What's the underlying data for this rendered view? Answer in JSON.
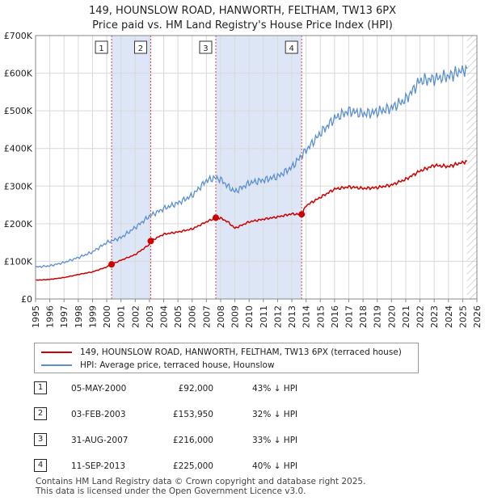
{
  "title_line1": "149, HOUNSLOW ROAD, HANWORTH, FELTHAM, TW13 6PX",
  "title_line2": "Price paid vs. HM Land Registry's House Price Index (HPI)",
  "colors": {
    "property": "#cc0000",
    "hpi": "#5b8fcf",
    "shade": "#dde6f7",
    "marker_line": "#cc0000"
  },
  "chart_data": {
    "type": "line",
    "title": "149, HOUNSLOW ROAD, HANWORTH, FELTHAM, TW13 6PX — Price paid vs. HM Land Registry's House Price Index (HPI)",
    "xlim": [
      1995,
      2026
    ],
    "ylim": [
      0,
      700000
    ],
    "yticks": [
      0,
      100000,
      200000,
      300000,
      400000,
      500000,
      600000,
      700000
    ],
    "ytick_labels": [
      "£0",
      "£100K",
      "£200K",
      "£300K",
      "£400K",
      "£500K",
      "£600K",
      "£700K"
    ],
    "xticks": [
      "1995",
      "1996",
      "1997",
      "1998",
      "1999",
      "2000",
      "2001",
      "2002",
      "2003",
      "2004",
      "2005",
      "2006",
      "2007",
      "2008",
      "2009",
      "2010",
      "2011",
      "2012",
      "2013",
      "2014",
      "2015",
      "2016",
      "2017",
      "2018",
      "2019",
      "2020",
      "2021",
      "2022",
      "2023",
      "2024",
      "2025",
      "2026"
    ],
    "grid": true,
    "shaded_ranges": [
      [
        2000.34,
        2003.09
      ],
      [
        2007.66,
        2013.69
      ]
    ],
    "data_end": 2025.3,
    "series": [
      {
        "name": "149, HOUNSLOW ROAD, HANWORTH, FELTHAM, TW13 6PX (terraced house)",
        "x": [
          1995,
          1996,
          1997,
          1998,
          1999,
          2000,
          2000.34,
          2001,
          2002,
          2003,
          2003.09,
          2004,
          2005,
          2006,
          2007,
          2007.66,
          2008,
          2008.5,
          2009,
          2010,
          2011,
          2012,
          2013,
          2013.69,
          2014,
          2015,
          2016,
          2017,
          2018,
          2019,
          2020,
          2021,
          2022,
          2023,
          2024,
          2025.3
        ],
        "y": [
          50000,
          52000,
          57000,
          65000,
          72000,
          85000,
          92000,
          103000,
          118000,
          145000,
          153950,
          172000,
          178000,
          186000,
          205000,
          216000,
          215000,
          205000,
          188000,
          205000,
          212000,
          218000,
          226000,
          225000,
          248000,
          270000,
          292000,
          298000,
          294000,
          296000,
          303000,
          318000,
          340000,
          355000,
          352000,
          366000
        ]
      },
      {
        "name": "HPI: Average price, terraced house, Hounslow",
        "x": [
          1995,
          1996,
          1997,
          1998,
          1999,
          2000,
          2001,
          2002,
          2003,
          2004,
          2005,
          2006,
          2007,
          2007.66,
          2008,
          2008.5,
          2009,
          2010,
          2011,
          2012,
          2013,
          2014,
          2015,
          2016,
          2017,
          2018,
          2019,
          2020,
          2021,
          2022,
          2023,
          2024,
          2025.3
        ],
        "y": [
          85000,
          88000,
          97000,
          110000,
          125000,
          150000,
          163000,
          190000,
          220000,
          240000,
          255000,
          275000,
          315000,
          322000,
          318000,
          300000,
          285000,
          308000,
          316000,
          325000,
          350000,
          395000,
          440000,
          480000,
          500000,
          492000,
          497000,
          508000,
          530000,
          580000,
          585000,
          592000,
          612000
        ]
      }
    ],
    "sales": [
      {
        "id": "1",
        "x": 2000.34,
        "y": 92000,
        "date": "05-MAY-2000",
        "price": "£92,000",
        "hpi": "43% ↓ HPI"
      },
      {
        "id": "2",
        "x": 2003.09,
        "y": 153950,
        "date": "03-FEB-2003",
        "price": "£153,950",
        "hpi": "32% ↓ HPI"
      },
      {
        "id": "3",
        "x": 2007.66,
        "y": 216000,
        "date": "31-AUG-2007",
        "price": "£216,000",
        "hpi": "33% ↓ HPI"
      },
      {
        "id": "4",
        "x": 2013.69,
        "y": 225000,
        "date": "11-SEP-2013",
        "price": "£225,000",
        "hpi": "40% ↓ HPI"
      }
    ]
  },
  "legend": {
    "property": "149, HOUNSLOW ROAD, HANWORTH, FELTHAM, TW13 6PX (terraced house)",
    "hpi": "HPI: Average price, terraced house, Hounslow"
  },
  "footer": {
    "line1": "Contains HM Land Registry data © Crown copyright and database right 2025.",
    "line2": "This data is licensed under the Open Government Licence v3.0."
  }
}
